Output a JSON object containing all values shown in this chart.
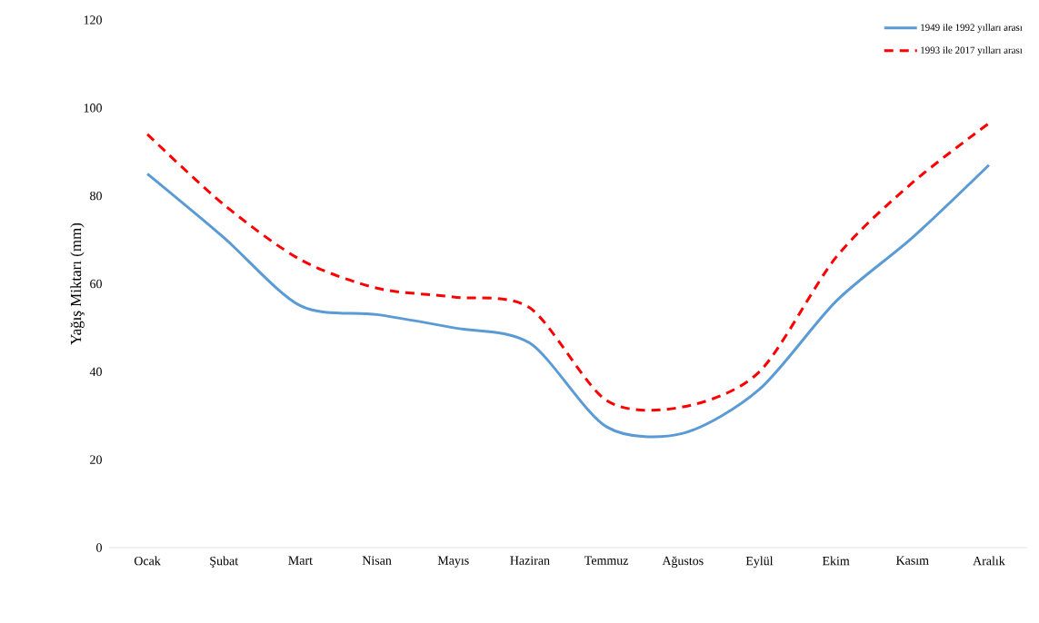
{
  "chart_data": {
    "type": "line",
    "ylabel": "Yağış Miktarı (mm)",
    "categories": [
      "Ocak",
      "Şubat",
      "Mart",
      "Nisan",
      "Mayıs",
      "Haziran",
      "Temmuz",
      "Ağustos",
      "Eylül",
      "Ekim",
      "Kasım",
      "Aralık"
    ],
    "series": [
      {
        "name": "1949 ile 1992 yılları arası",
        "color": "#5b9bd5",
        "line_style": "solid",
        "values": [
          85,
          70.5,
          55,
          53,
          50,
          46.5,
          27.5,
          26,
          36,
          56,
          70.5,
          87
        ]
      },
      {
        "name": "1993 ile 2017 yılları arası",
        "color": "#ff0000",
        "line_style": "dashed",
        "values": [
          94,
          78,
          65.5,
          59,
          57,
          54.5,
          33.5,
          32,
          40,
          66,
          83,
          96.5
        ]
      }
    ],
    "ylim": [
      0,
      120
    ],
    "yticks": [
      0,
      20,
      40,
      60,
      80,
      100,
      120
    ],
    "legend": "top right",
    "marker": "none",
    "grid": false
  }
}
